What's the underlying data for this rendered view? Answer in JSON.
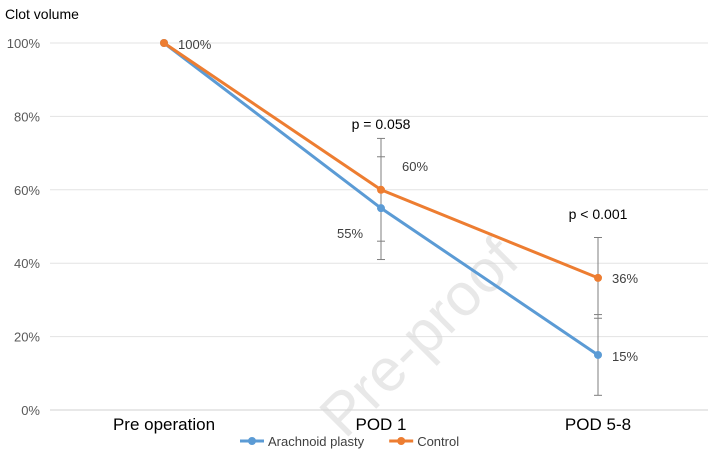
{
  "chart_data": {
    "type": "line",
    "ylabel": "Clot volume",
    "categories": [
      "Pre operation",
      "POD 1",
      "POD 5-8"
    ],
    "ylim": [
      0,
      100
    ],
    "yticks": [
      "0%",
      "20%",
      "40%",
      "60%",
      "80%",
      "100%"
    ],
    "grid": true,
    "legend_position": "bottom",
    "series": [
      {
        "name": "Arachnoid plasty",
        "color": "#5b9bd5",
        "values": [
          100,
          55,
          15
        ],
        "error_low": [
          null,
          46,
          4
        ],
        "error_high": [
          null,
          69,
          26
        ],
        "labels": [
          "",
          "55%",
          "15%"
        ]
      },
      {
        "name": "Control",
        "color": "#ed7d31",
        "values": [
          100,
          60,
          36
        ],
        "error_low": [
          null,
          41,
          25
        ],
        "error_high": [
          null,
          74,
          47
        ],
        "labels": [
          "100%",
          "60%",
          "36%"
        ]
      }
    ],
    "annotations": [
      {
        "category_index": 1,
        "text": "p = 0.058"
      },
      {
        "category_index": 2,
        "text": "p < 0.001"
      }
    ]
  },
  "watermark": "Pre-proof"
}
